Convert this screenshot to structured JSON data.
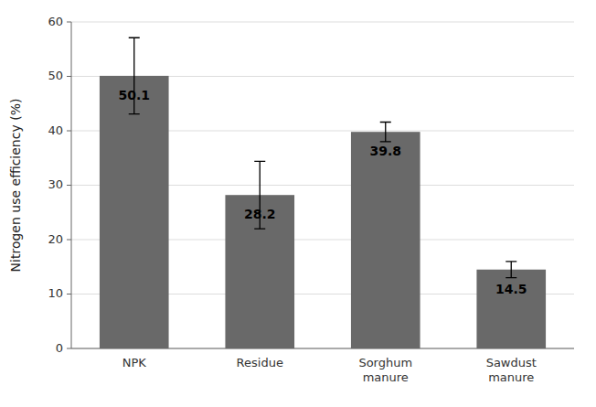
{
  "chart_data": {
    "type": "bar",
    "categories": [
      "NPK",
      "Residue",
      "Sorghum\nmanure",
      "Sawdust\nmanure"
    ],
    "values": [
      50.1,
      28.2,
      39.8,
      14.5
    ],
    "errors": [
      7.0,
      6.2,
      1.8,
      1.5
    ],
    "color": "#696969",
    "ylabel": "Nitrogen use efficiency (%)",
    "ylim": [
      0,
      60
    ],
    "yticks": [
      0,
      10,
      20,
      30,
      40,
      50,
      60
    ],
    "grid": true,
    "data_labels": true
  }
}
